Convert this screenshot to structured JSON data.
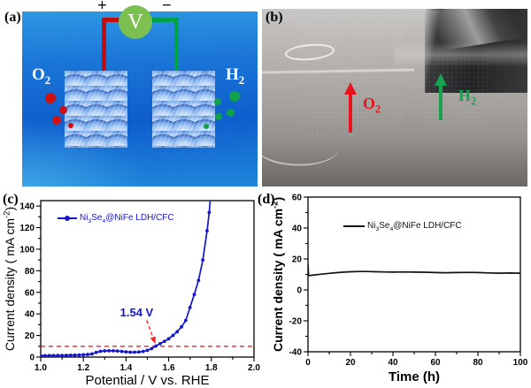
{
  "figure": {
    "panel_a": {
      "label": "(a)",
      "plus": "+",
      "minus": "−",
      "voltmeter": "V",
      "left_gas": "O_{2}",
      "right_gas": "H_{2}",
      "colors": {
        "wire_pos": "#c20d0d",
        "wire_neg": "#00a14b",
        "meter": "#7cc04f",
        "o2_bubbles": "#cf1010",
        "h2_bubbles": "#12a04b"
      }
    },
    "panel_b": {
      "label": "(b)",
      "left_gas": "O_{2}",
      "right_gas": "H_{2}",
      "colors": {
        "o2": "#e8131c",
        "h2": "#16a24e"
      }
    },
    "panel_c": {
      "label": "(c)"
    },
    "panel_d": {
      "label": "(d)"
    }
  },
  "chart_data": [
    {
      "panel": "c",
      "type": "line",
      "xlabel": "Potential / V vs. RHE",
      "ylabel": "Current density ( mA cm^{-2})",
      "xlim": [
        1.0,
        2.0
      ],
      "ylim": [
        0,
        145
      ],
      "xticks": [
        "1.0",
        "1.2",
        "1.4",
        "1.6",
        "1.8",
        "2.0"
      ],
      "yticks": [
        0,
        20,
        40,
        60,
        80,
        100,
        120,
        140
      ],
      "x_minor": 0.1,
      "y_minor": 10,
      "legend": [
        {
          "label": "Ni_{3}Se_{4}@NiFe LDH/CFC",
          "color": "#1616cf",
          "marker": "circle"
        }
      ],
      "series": [
        {
          "name": "Ni_{3}Se_{4}@NiFe LDH/CFC",
          "color": "#1616cf",
          "marker": true,
          "x": [
            1.0,
            1.02,
            1.04,
            1.06,
            1.08,
            1.1,
            1.12,
            1.14,
            1.16,
            1.18,
            1.2,
            1.22,
            1.24,
            1.26,
            1.28,
            1.3,
            1.32,
            1.34,
            1.36,
            1.38,
            1.4,
            1.42,
            1.44,
            1.46,
            1.48,
            1.5,
            1.52,
            1.54,
            1.56,
            1.58,
            1.6,
            1.62,
            1.64,
            1.66,
            1.68,
            1.7,
            1.72,
            1.74,
            1.76,
            1.78,
            1.79,
            1.795
          ],
          "y": [
            1.3,
            1.3,
            1.4,
            1.4,
            1.5,
            1.5,
            1.6,
            1.7,
            1.8,
            1.9,
            2.1,
            2.4,
            2.9,
            4.3,
            5.3,
            5.7,
            5.8,
            5.8,
            5.6,
            5.2,
            4.8,
            4.5,
            4.5,
            4.7,
            5.2,
            6.2,
            7.8,
            10.2,
            12.5,
            14.5,
            17.0,
            20.0,
            23.5,
            28.0,
            34.0,
            46.0,
            58.0,
            71.0,
            90.0,
            117.0,
            134.0,
            146.0
          ]
        }
      ],
      "refline": {
        "value": 10,
        "color": "#ff1c1c"
      },
      "annotation": {
        "text": "1.54 V",
        "color": "#1414cd",
        "text_x": 1.45,
        "text_y": 41,
        "arrow": [
          [
            1.497,
            34
          ],
          [
            1.536,
            13
          ]
        ]
      }
    },
    {
      "panel": "d",
      "type": "line",
      "xlabel": "Time (h)",
      "ylabel": "Current density ( mA cm^{-2})",
      "xlim": [
        0,
        100
      ],
      "ylim": [
        -40,
        60
      ],
      "xticks": [
        0,
        20,
        40,
        60,
        80,
        100
      ],
      "yticks": [
        -40,
        -20,
        0,
        20,
        40,
        60
      ],
      "x_minor": 10,
      "y_minor": 10,
      "legend": [
        {
          "label": "Ni_{3}Se_{4}@NiFe LDH/CFC",
          "color": "#111111",
          "marker": "line"
        }
      ],
      "series": [
        {
          "name": "Ni_{3}Se_{4}@NiFe LDH/CFC",
          "color": "#111111",
          "marker": false,
          "x": [
            0,
            0.3,
            1,
            2,
            4,
            6,
            8,
            10,
            13,
            16,
            20,
            24,
            28,
            32,
            36,
            40,
            45,
            50,
            55,
            60,
            65,
            70,
            75,
            80,
            85,
            90,
            95,
            100
          ],
          "y": [
            16.5,
            9.2,
            9.3,
            9.5,
            9.8,
            10.1,
            10.4,
            10.7,
            11.1,
            11.4,
            11.7,
            11.9,
            11.9,
            11.7,
            11.6,
            11.5,
            11.6,
            11.5,
            11.4,
            11.2,
            11.1,
            11.2,
            11.3,
            11.2,
            11.0,
            10.8,
            10.9,
            10.8
          ]
        }
      ]
    }
  ]
}
